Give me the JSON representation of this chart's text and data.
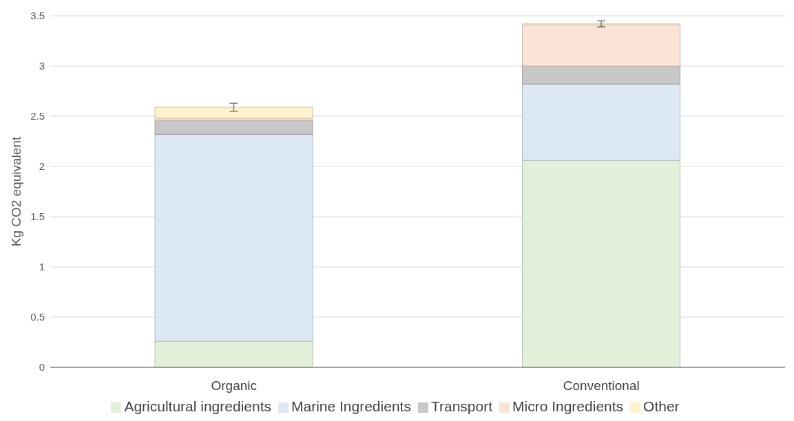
{
  "chart_data": {
    "type": "bar",
    "stacked": true,
    "ylabel": "Kg CO2 equivalent",
    "categories": [
      "Organic",
      "Conventional"
    ],
    "series": [
      {
        "name": "Agricultural ingredients",
        "color": "#e2efd9",
        "values": [
          0.26,
          2.06
        ]
      },
      {
        "name": "Marine Ingredients",
        "color": "#dde8f5",
        "values": [
          2.06,
          0.76
        ]
      },
      {
        "name": "Transport",
        "color": "#c8c8c8",
        "values": [
          0.14,
          0.18
        ]
      },
      {
        "name": "Micro Ingredients",
        "color": "#fbe3d6",
        "values": [
          0.02,
          0.41
        ]
      },
      {
        "name": "Other",
        "color": "#fff2cc",
        "values": [
          0.11,
          0.01
        ],
        "errors": [
          0.04,
          0.03
        ]
      }
    ],
    "ylim": [
      0,
      3.5
    ],
    "yticks": [
      0,
      0.5,
      1,
      1.5,
      2,
      2.5,
      3,
      3.5
    ],
    "grid": "y",
    "legend": "bottom"
  }
}
